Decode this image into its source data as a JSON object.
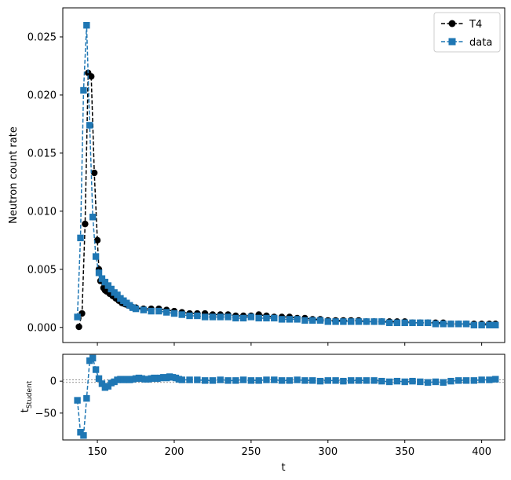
{
  "chart_data": [
    {
      "type": "line",
      "title": "",
      "xlabel": "",
      "ylabel": "Neutron count rate",
      "xlim": [
        127.5,
        415
      ],
      "ylim": [
        -0.0013,
        0.0275
      ],
      "yticks": [
        "0.000",
        "0.005",
        "0.010",
        "0.015",
        "0.020",
        "0.025"
      ],
      "ytick_values": [
        0,
        0.005,
        0.01,
        0.015,
        0.02,
        0.025
      ],
      "legend": {
        "placement": "top-right",
        "entries": [
          "T4",
          "data"
        ]
      },
      "grid": false,
      "series": [
        {
          "name": "T4",
          "color": "#000000",
          "marker": "circle",
          "x": [
            138,
            140,
            142,
            144,
            146,
            148,
            150,
            151,
            152,
            154,
            155,
            156,
            158,
            160,
            162,
            164,
            166,
            168,
            170,
            172,
            175,
            180,
            185,
            190,
            195,
            200,
            205,
            210,
            215,
            220,
            225,
            230,
            235,
            240,
            245,
            250,
            255,
            260,
            265,
            270,
            275,
            280,
            285,
            290,
            295,
            300,
            305,
            310,
            315,
            320,
            325,
            330,
            335,
            340,
            345,
            350,
            355,
            360,
            365,
            370,
            375,
            380,
            385,
            390,
            395,
            400,
            405,
            409
          ],
          "y": [
            5e-05,
            0.0012,
            0.0089,
            0.0219,
            0.0216,
            0.0133,
            0.0075,
            0.005,
            0.004,
            0.0034,
            0.0032,
            0.0031,
            0.0029,
            0.0027,
            0.0025,
            0.0023,
            0.0021,
            0.002,
            0.0019,
            0.0018,
            0.0017,
            0.0016,
            0.0016,
            0.0016,
            0.0015,
            0.0014,
            0.0013,
            0.0012,
            0.0012,
            0.0012,
            0.0011,
            0.0011,
            0.0011,
            0.001,
            0.001,
            0.001,
            0.0011,
            0.001,
            0.0009,
            0.0009,
            0.0009,
            0.0008,
            0.0008,
            0.0007,
            0.0007,
            0.0006,
            0.0006,
            0.0006,
            0.0006,
            0.0006,
            0.0005,
            0.0005,
            0.0005,
            0.0005,
            0.0005,
            0.0005,
            0.0004,
            0.0004,
            0.0004,
            0.0004,
            0.0004,
            0.0003,
            0.0003,
            0.0003,
            0.0003,
            0.0003,
            0.0003,
            0.0003
          ]
        },
        {
          "name": "data",
          "color": "#1f77b4",
          "marker": "square",
          "x": [
            137,
            139,
            141,
            143,
            145,
            147,
            149,
            151,
            153,
            155,
            157,
            159,
            161,
            163,
            165,
            167,
            169,
            171,
            173,
            175,
            180,
            185,
            190,
            195,
            200,
            205,
            210,
            215,
            220,
            225,
            230,
            235,
            240,
            245,
            250,
            255,
            260,
            265,
            270,
            275,
            280,
            285,
            290,
            295,
            300,
            305,
            310,
            315,
            320,
            325,
            330,
            335,
            340,
            345,
            350,
            355,
            360,
            365,
            370,
            375,
            380,
            385,
            390,
            395,
            400,
            405,
            409
          ],
          "y": [
            0.0009,
            0.0077,
            0.0204,
            0.026,
            0.0174,
            0.0095,
            0.0061,
            0.0047,
            0.0042,
            0.0039,
            0.0036,
            0.0033,
            0.003,
            0.0028,
            0.0025,
            0.0023,
            0.0021,
            0.0019,
            0.0017,
            0.0016,
            0.0015,
            0.0014,
            0.0014,
            0.0013,
            0.0012,
            0.0011,
            0.001,
            0.001,
            0.0009,
            0.0009,
            0.0009,
            0.0009,
            0.0008,
            0.0008,
            0.0009,
            0.0008,
            0.0008,
            0.0008,
            0.0007,
            0.0007,
            0.0007,
            0.0006,
            0.0006,
            0.0006,
            0.0005,
            0.0005,
            0.0005,
            0.0005,
            0.0005,
            0.0005,
            0.0005,
            0.0005,
            0.0004,
            0.0004,
            0.0004,
            0.0004,
            0.0004,
            0.0004,
            0.0003,
            0.0003,
            0.0003,
            0.0003,
            0.0003,
            0.0002,
            0.0002,
            0.0002,
            0.0002
          ]
        }
      ]
    },
    {
      "type": "line",
      "title": "",
      "xlabel": "t",
      "ylabel": "t_Student",
      "ylabel_main": "t",
      "ylabel_sub": "Student",
      "xlim": [
        127.5,
        415
      ],
      "ylim": [
        -92,
        42
      ],
      "xticks": [
        "150",
        "200",
        "250",
        "300",
        "350",
        "400"
      ],
      "xtick_values": [
        150,
        200,
        250,
        300,
        350,
        400
      ],
      "yticks": [
        "−50",
        "0"
      ],
      "ytick_values": [
        -50,
        0
      ],
      "reference_lines": [
        2,
        -2
      ],
      "grid": false,
      "series": [
        {
          "name": "",
          "color": "#1f77b4",
          "marker": "square",
          "x": [
            137,
            139,
            141,
            143,
            145,
            147,
            149,
            151,
            153,
            155,
            157,
            159,
            161,
            163,
            165,
            167,
            169,
            171,
            173,
            175,
            177,
            179,
            181,
            183,
            185,
            187,
            189,
            191,
            193,
            195,
            197,
            199,
            201,
            203,
            205,
            210,
            215,
            220,
            225,
            230,
            235,
            240,
            245,
            250,
            255,
            260,
            265,
            270,
            275,
            280,
            285,
            290,
            295,
            300,
            305,
            310,
            315,
            320,
            325,
            330,
            335,
            340,
            345,
            350,
            355,
            360,
            365,
            370,
            375,
            380,
            385,
            390,
            395,
            400,
            405,
            409
          ],
          "y": [
            -30,
            -80,
            -85,
            -27,
            32,
            36,
            18,
            4,
            -4,
            -10,
            -8,
            -3,
            -1,
            2,
            3,
            2,
            3,
            2,
            3,
            4,
            5,
            4,
            3,
            3,
            4,
            5,
            4,
            5,
            6,
            5,
            7,
            6,
            5,
            3,
            2,
            2,
            2,
            1,
            1,
            2,
            1,
            1,
            2,
            1,
            1,
            2,
            2,
            1,
            1,
            2,
            1,
            1,
            0,
            1,
            1,
            0,
            1,
            1,
            1,
            1,
            0,
            -1,
            0,
            -1,
            0,
            -1,
            -2,
            -1,
            -2,
            0,
            1,
            1,
            1,
            2,
            2,
            3
          ]
        }
      ]
    }
  ]
}
